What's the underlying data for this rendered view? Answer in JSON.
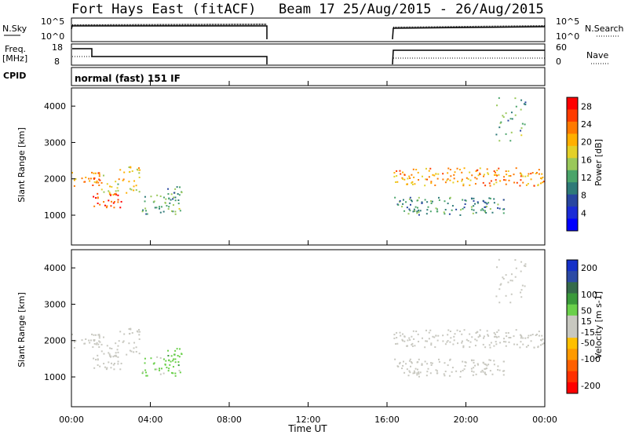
{
  "header": {
    "title": "Fort Hays East (fitACF)",
    "beam_date": "Beam 17  25/Aug/2015 - 26/Aug/2015"
  },
  "strips": {
    "nsky_label": "N.Sky",
    "nsearch_label": "N.Search",
    "noise_ticks": [
      "10^5",
      "10^0"
    ],
    "freq_label": "Freq.",
    "freq_unit": "[MHz]",
    "freq_ticks": [
      "18",
      "8"
    ],
    "nave_label": "Nave",
    "nave_ticks": [
      "60",
      "0"
    ],
    "cpid_label": "CPID",
    "cpid_value": "normal (fast) 151 IF"
  },
  "panels": {
    "power_ylabel": "Slant Range [km]",
    "velocity_ylabel": "Slant Range [km]",
    "xlabel": "Time UT"
  },
  "colorbars": {
    "power": {
      "title": "Power [dB]",
      "ticks": [
        "28",
        "24",
        "20",
        "16",
        "12",
        "8",
        "4"
      ],
      "colors": [
        "#ff0000",
        "#ff3c00",
        "#ff7a00",
        "#ffaf00",
        "#e3d028",
        "#9ac85a",
        "#4aa46a",
        "#2e7a78",
        "#2846a0",
        "#1a2bd6",
        "#0000ff"
      ]
    },
    "velocity": {
      "title": "Velocity [m s-1]",
      "ticks": [
        "200",
        "100",
        "50",
        "15",
        "-15",
        "-50",
        "-100",
        "-200"
      ],
      "colors": [
        "#1530c8",
        "#2c4aa4",
        "#356a4a",
        "#3a9a3a",
        "#6ad04a",
        "#c8c8c0",
        "#c8c8c0",
        "#ffc000",
        "#ff9a00",
        "#ff6000",
        "#ff3000",
        "#ff0000"
      ]
    }
  },
  "chart_data": {
    "type": "heatmap",
    "x_axis": {
      "label": "Time UT",
      "range": [
        "2015-08-25 00:00",
        "2015-08-26 00:00"
      ],
      "ticks": [
        "00:00",
        "04:00",
        "08:00",
        "12:00",
        "16:00",
        "20:00",
        "00:00"
      ]
    },
    "y_axis": {
      "label": "Slant Range [km]",
      "range": [
        180,
        4500
      ],
      "ticks": [
        1000,
        2000,
        3000,
        4000
      ]
    },
    "data_gap": [
      "10:00",
      "16:20"
    ],
    "power_db_range": [
      0,
      30
    ],
    "velocity_range": [
      -250,
      250
    ],
    "echo_regions": [
      {
        "time": [
          "00:00",
          "01:30"
        ],
        "range_km": [
          1800,
          2200
        ],
        "power_db": 24,
        "velocity": 10
      },
      {
        "time": [
          "01:00",
          "02:30"
        ],
        "range_km": [
          1200,
          1600
        ],
        "power_db": 27,
        "velocity": -8
      },
      {
        "time": [
          "01:30",
          "03:30"
        ],
        "range_km": [
          1600,
          2400
        ],
        "power_db": 18,
        "velocity": -20
      },
      {
        "time": [
          "03:30",
          "05:30"
        ],
        "range_km": [
          1000,
          1600
        ],
        "power_db": 12,
        "velocity": 60
      },
      {
        "time": [
          "04:50",
          "05:40"
        ],
        "range_km": [
          1300,
          1800
        ],
        "power_db": 10,
        "velocity": 80
      },
      {
        "time": [
          "16:20",
          "23:59"
        ],
        "range_km": [
          1800,
          2300
        ],
        "power_db": 22,
        "velocity": 5
      },
      {
        "time": [
          "16:20",
          "22:00"
        ],
        "range_km": [
          1000,
          1500
        ],
        "power_db": 10,
        "velocity": -10
      },
      {
        "time": [
          "21:30",
          "23:00"
        ],
        "range_km": [
          3000,
          4300
        ],
        "power_db": 12,
        "velocity": 0
      }
    ]
  }
}
